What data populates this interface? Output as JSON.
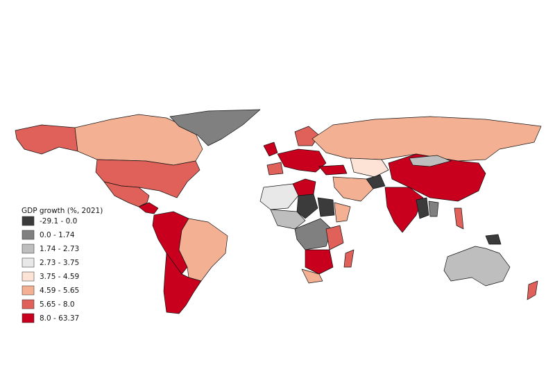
{
  "legend": {
    "title": "GDP growth (%, 2021)",
    "items": [
      {
        "label": "-29.1 - 0.0",
        "color": "#3b3b3b"
      },
      {
        "label": "0.0 - 1.74",
        "color": "#808080"
      },
      {
        "label": "1.74 - 2.73",
        "color": "#bebebe"
      },
      {
        "label": "2.73 - 3.75",
        "color": "#e8e8e8"
      },
      {
        "label": "3.75 - 4.59",
        "color": "#fde3d6"
      },
      {
        "label": "4.59 - 5.65",
        "color": "#f4b093"
      },
      {
        "label": "5.65 - 8.0",
        "color": "#e0605a"
      },
      {
        "label": "8.0 - 63.37",
        "color": "#c8001e"
      }
    ]
  }
}
